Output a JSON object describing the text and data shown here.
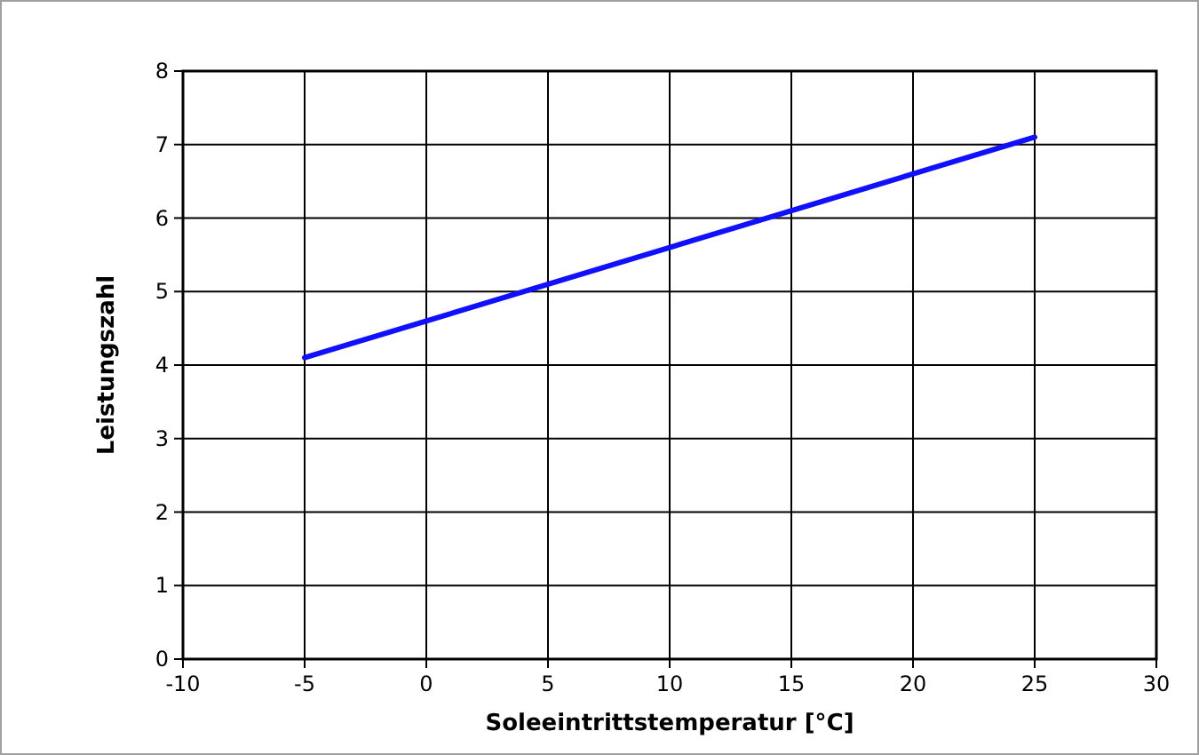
{
  "chart_data": {
    "type": "line",
    "xlabel": "Soleeintrittstemperatur [°C]",
    "ylabel": "Leistungszahl",
    "series": [
      {
        "color": "#1010ff",
        "x": [
          -5,
          25
        ],
        "values": [
          4.1,
          7.1
        ]
      }
    ],
    "xlim": [
      -10,
      30
    ],
    "xticks": [
      -10,
      -5,
      0,
      5,
      10,
      15,
      20,
      25,
      30
    ],
    "ylim": [
      0,
      8
    ],
    "yticks": [
      0,
      1,
      2,
      3,
      4,
      5,
      6,
      7,
      8
    ],
    "grid": true,
    "marker": "none",
    "line_style": "solid"
  }
}
